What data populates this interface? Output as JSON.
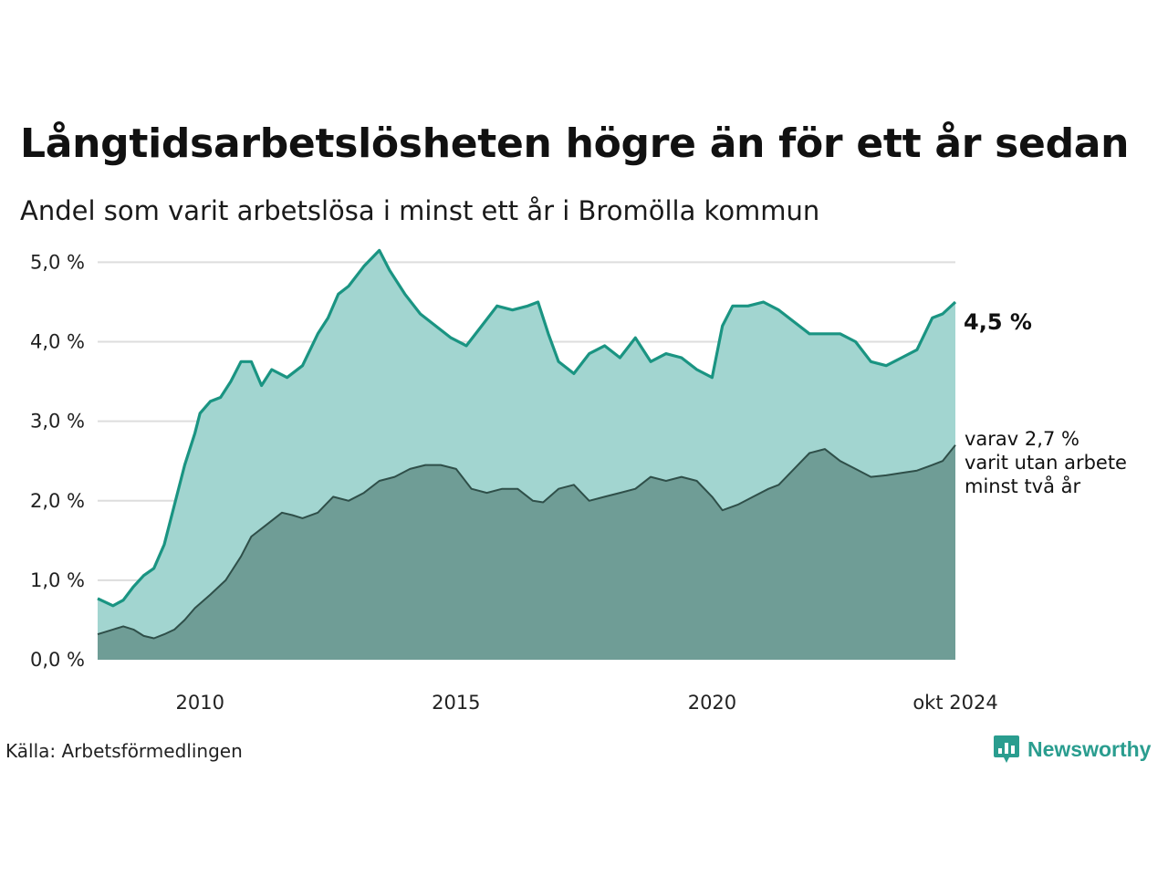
{
  "title": "Långtidsarbetslösheten högre än för ett år sedan",
  "subtitle": "Andel som varit arbetslösa i minst ett år i Bromölla kommun",
  "source": "Källa: Arbetsförmedlingen",
  "brand": "Newsworthy",
  "colors": {
    "total_line": "#1a9482",
    "total_fill": "#a2d5d0",
    "long_line": "#2f4f49",
    "long_fill": "#6f9d96",
    "grid": "#dddddd",
    "brand": "#2a9d8f"
  },
  "chart_data": {
    "type": "area",
    "xlim": [
      2008.0,
      2024.75
    ],
    "ylim": [
      0,
      5.2
    ],
    "y_ticks": [
      0,
      1,
      2,
      3,
      4,
      5
    ],
    "y_tick_labels": [
      "0,0 %",
      "1,0 %",
      "2,0 %",
      "3,0 %",
      "4,0 %",
      "5,0 %"
    ],
    "x_ticks": [
      2010,
      2015,
      2020,
      2024.75
    ],
    "x_tick_labels": [
      "2010",
      "2015",
      "2020",
      "okt 2024"
    ],
    "grid": true,
    "end_label": "4,5 %",
    "annotation_lines": [
      "varav 2,7 %",
      "varit utan arbete",
      "minst två år"
    ],
    "series": [
      {
        "key": "total",
        "x": [
          2008.0,
          2008.3,
          2008.5,
          2008.7,
          2008.9,
          2009.1,
          2009.3,
          2009.5,
          2009.7,
          2009.9,
          2010.0,
          2010.2,
          2010.4,
          2010.6,
          2010.8,
          2011.0,
          2011.2,
          2011.4,
          2011.7,
          2012.0,
          2012.3,
          2012.5,
          2012.7,
          2012.9,
          2013.2,
          2013.5,
          2013.7,
          2014.0,
          2014.3,
          2014.6,
          2014.9,
          2015.2,
          2015.5,
          2015.8,
          2016.1,
          2016.4,
          2016.6,
          2016.8,
          2017.0,
          2017.3,
          2017.6,
          2017.9,
          2018.2,
          2018.5,
          2018.8,
          2019.1,
          2019.4,
          2019.7,
          2020.0,
          2020.2,
          2020.4,
          2020.7,
          2021.0,
          2021.3,
          2021.6,
          2021.9,
          2022.2,
          2022.5,
          2022.8,
          2023.1,
          2023.4,
          2023.7,
          2024.0,
          2024.3,
          2024.5,
          2024.75
        ],
        "y": [
          0.77,
          0.68,
          0.75,
          0.92,
          1.06,
          1.15,
          1.45,
          1.95,
          2.45,
          2.85,
          3.1,
          3.25,
          3.3,
          3.5,
          3.75,
          3.75,
          3.45,
          3.65,
          3.55,
          3.7,
          4.1,
          4.3,
          4.6,
          4.7,
          4.95,
          5.15,
          4.9,
          4.6,
          4.35,
          4.2,
          4.05,
          3.95,
          4.2,
          4.45,
          4.4,
          4.45,
          4.5,
          4.1,
          3.75,
          3.6,
          3.85,
          3.95,
          3.8,
          4.05,
          3.75,
          3.85,
          3.8,
          3.65,
          3.55,
          4.2,
          4.45,
          4.45,
          4.5,
          4.4,
          4.25,
          4.1,
          4.1,
          4.1,
          4.0,
          3.75,
          3.7,
          3.8,
          3.9,
          4.3,
          4.35,
          4.5
        ]
      },
      {
        "key": "long",
        "x": [
          2008.0,
          2008.3,
          2008.5,
          2008.7,
          2008.9,
          2009.1,
          2009.3,
          2009.5,
          2009.7,
          2009.9,
          2010.2,
          2010.5,
          2010.8,
          2011.0,
          2011.3,
          2011.6,
          2011.8,
          2012.0,
          2012.3,
          2012.6,
          2012.9,
          2013.2,
          2013.5,
          2013.8,
          2014.1,
          2014.4,
          2014.7,
          2015.0,
          2015.3,
          2015.6,
          2015.9,
          2016.2,
          2016.5,
          2016.7,
          2017.0,
          2017.3,
          2017.6,
          2017.9,
          2018.2,
          2018.5,
          2018.8,
          2019.1,
          2019.4,
          2019.7,
          2020.0,
          2020.2,
          2020.5,
          2020.8,
          2021.1,
          2021.3,
          2021.6,
          2021.9,
          2022.2,
          2022.5,
          2022.8,
          2023.1,
          2023.4,
          2023.7,
          2024.0,
          2024.3,
          2024.5,
          2024.75
        ],
        "y": [
          0.32,
          0.38,
          0.42,
          0.38,
          0.3,
          0.27,
          0.32,
          0.38,
          0.5,
          0.65,
          0.82,
          1.0,
          1.3,
          1.55,
          1.7,
          1.85,
          1.82,
          1.78,
          1.85,
          2.05,
          2.0,
          2.1,
          2.25,
          2.3,
          2.4,
          2.45,
          2.45,
          2.4,
          2.15,
          2.1,
          2.15,
          2.15,
          2.0,
          1.98,
          2.15,
          2.2,
          2.0,
          2.05,
          2.1,
          2.15,
          2.3,
          2.25,
          2.3,
          2.25,
          2.05,
          1.88,
          1.95,
          2.05,
          2.15,
          2.2,
          2.4,
          2.6,
          2.65,
          2.5,
          2.4,
          2.3,
          2.32,
          2.35,
          2.38,
          2.45,
          2.5,
          2.7
        ]
      }
    ]
  }
}
